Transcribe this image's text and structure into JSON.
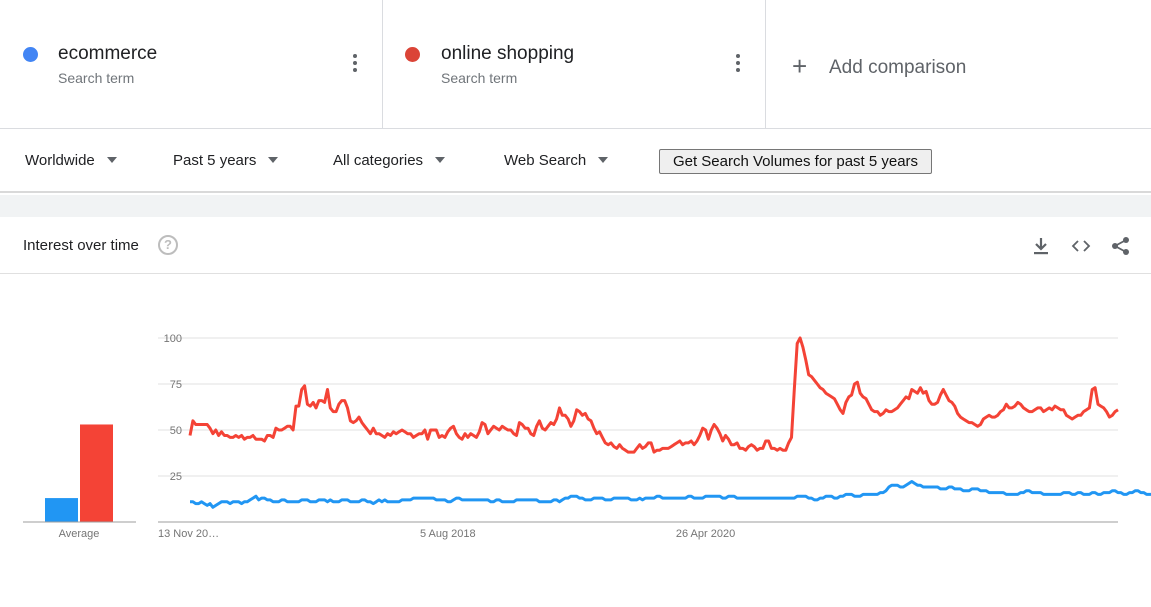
{
  "terms": [
    {
      "name": "ecommerce",
      "type": "Search term",
      "color": "#4285f4"
    },
    {
      "name": "online shopping",
      "type": "Search term",
      "color": "#db4437"
    }
  ],
  "add_comparison": {
    "icon": "plus-icon",
    "label": "Add comparison"
  },
  "filters": {
    "region": "Worldwide",
    "time": "Past 5 years",
    "category": "All categories",
    "search_type": "Web Search",
    "volume_button": "Get Search Volumes for past 5 years"
  },
  "card": {
    "title": "Interest over time",
    "help_icon": "question-circle-icon",
    "tools": [
      "download-icon",
      "embed-code-icon",
      "share-icon"
    ]
  },
  "chart_data": {
    "type": "line",
    "title": "Interest over time",
    "ylim": [
      0,
      100
    ],
    "y_ticks": [
      25,
      50,
      75,
      100
    ],
    "x_ticks": [
      {
        "label": "13 Nov 20…",
        "index": 0
      },
      {
        "label": "5 Aug 2018",
        "index": 90
      },
      {
        "label": "26 Apr 2020",
        "index": 180
      }
    ],
    "grid": true,
    "average_label": "Average",
    "averages": [
      {
        "name": "ecommerce",
        "value": 13,
        "color": "#2196f3"
      },
      {
        "name": "online shopping",
        "value": 53,
        "color": "#f44336"
      }
    ],
    "series": [
      {
        "name": "online shopping",
        "color": "#f44336",
        "values": [
          47,
          55,
          53,
          53,
          53,
          53,
          53,
          51,
          48,
          50,
          47,
          49,
          47,
          47,
          46,
          46,
          47,
          46,
          47,
          45,
          46,
          46,
          47,
          45,
          45,
          45,
          44,
          47,
          47,
          46,
          51,
          50,
          50,
          51,
          52,
          52,
          50,
          63,
          63,
          72,
          74,
          64,
          63,
          65,
          62,
          66,
          66,
          65,
          72,
          62,
          60,
          60,
          64,
          66,
          66,
          62,
          55,
          54,
          55,
          57,
          54,
          52,
          50,
          48,
          51,
          48,
          48,
          47,
          46,
          48,
          47,
          49,
          48,
          49,
          50,
          49,
          48,
          48,
          46,
          47,
          48,
          48,
          50,
          45,
          50,
          50,
          50,
          46,
          47,
          46,
          49,
          51,
          52,
          48,
          46,
          45,
          48,
          46,
          48,
          47,
          46,
          49,
          54,
          53,
          48,
          50,
          52,
          51,
          50,
          52,
          51,
          50,
          50,
          48,
          47,
          54,
          53,
          51,
          51,
          48,
          47,
          52,
          55,
          51,
          50,
          52,
          54,
          53,
          56,
          62,
          58,
          58,
          56,
          52,
          55,
          61,
          60,
          58,
          59,
          56,
          55,
          51,
          48,
          49,
          46,
          43,
          42,
          43,
          41,
          40,
          42,
          40,
          39,
          38,
          38,
          38,
          40,
          42,
          40,
          41,
          43,
          43,
          38,
          39,
          39,
          40,
          40,
          40,
          41,
          42,
          43,
          44,
          42,
          43,
          43,
          44,
          42,
          44,
          47,
          51,
          50,
          45,
          50,
          53,
          51,
          48,
          44,
          47,
          45,
          42,
          42,
          43,
          40,
          40,
          39,
          41,
          42,
          41,
          39,
          40,
          40,
          44,
          44,
          40,
          40,
          39,
          40,
          39,
          39,
          43,
          46,
          72,
          97,
          100,
          95,
          88,
          80,
          79,
          77,
          75,
          73,
          72,
          70,
          69,
          68,
          67,
          64,
          61,
          59,
          65,
          68,
          69,
          75,
          76,
          70,
          68,
          67,
          64,
          61,
          60,
          60,
          58,
          59,
          61,
          60,
          60,
          61,
          62,
          64,
          66,
          68,
          67,
          72,
          71,
          70,
          73,
          70,
          71,
          66,
          64,
          64,
          65,
          69,
          72,
          69,
          66,
          65,
          63,
          59,
          57,
          56,
          55,
          54,
          54,
          53,
          52,
          53,
          56,
          57,
          58,
          57,
          57,
          58,
          60,
          61,
          64,
          62,
          62,
          63,
          65,
          64,
          62,
          61,
          60,
          60,
          61,
          62,
          62,
          60,
          61,
          62,
          61,
          63,
          62,
          61,
          61,
          58,
          57,
          56,
          57,
          58,
          58,
          60,
          61,
          62,
          72,
          73,
          64,
          63,
          62,
          60,
          57,
          58,
          60,
          61
        ]
      },
      {
        "name": "ecommerce",
        "color": "#2196f3",
        "values": [
          11,
          11,
          10,
          10,
          11,
          10,
          9,
          10,
          8,
          9,
          10,
          11,
          11,
          11,
          10,
          11,
          11,
          11,
          10,
          11,
          11,
          12,
          13,
          14,
          12,
          13,
          13,
          12,
          12,
          11,
          11,
          11,
          12,
          12,
          11,
          11,
          11,
          11,
          11,
          12,
          12,
          12,
          11,
          11,
          11,
          12,
          12,
          12,
          11,
          12,
          11,
          11,
          11,
          12,
          12,
          12,
          11,
          11,
          11,
          11,
          12,
          12,
          11,
          11,
          10,
          11,
          12,
          11,
          12,
          11,
          11,
          11,
          11,
          11,
          12,
          12,
          12,
          12,
          13,
          13,
          13,
          13,
          13,
          13,
          13,
          13,
          12,
          12,
          12,
          12,
          11,
          11,
          12,
          13,
          13,
          12,
          12,
          12,
          12,
          12,
          12,
          12,
          12,
          12,
          12,
          11,
          11,
          12,
          12,
          11,
          11,
          11,
          11,
          11,
          12,
          12,
          12,
          12,
          12,
          12,
          12,
          12,
          11,
          11,
          11,
          11,
          11,
          12,
          12,
          11,
          12,
          13,
          13,
          14,
          14,
          14,
          13,
          13,
          12,
          12,
          12,
          13,
          13,
          13,
          13,
          12,
          12,
          12,
          13,
          13,
          13,
          13,
          13,
          13,
          12,
          12,
          12,
          13,
          12,
          13,
          13,
          13,
          13,
          14,
          14,
          13,
          13,
          13,
          13,
          13,
          13,
          13,
          13,
          13,
          14,
          14,
          13,
          13,
          13,
          13,
          14,
          14,
          14,
          14,
          14,
          14,
          13,
          13,
          14,
          14,
          14,
          13,
          13,
          13,
          13,
          13,
          13,
          13,
          13,
          13,
          13,
          13,
          13,
          13,
          13,
          13,
          13,
          13,
          13,
          13,
          13,
          13,
          14,
          14,
          14,
          14,
          13,
          13,
          12,
          12,
          13,
          13,
          14,
          14,
          14,
          13,
          13,
          14,
          14,
          15,
          15,
          15,
          14,
          14,
          14,
          15,
          15,
          15,
          15,
          15,
          15,
          16,
          16,
          17,
          19,
          20,
          20,
          20,
          19,
          19,
          20,
          21,
          22,
          21,
          20,
          20,
          19,
          19,
          19,
          19,
          19,
          19,
          18,
          18,
          18,
          19,
          19,
          18,
          18,
          18,
          17,
          17,
          17,
          18,
          18,
          18,
          17,
          17,
          17,
          16,
          16,
          16,
          16,
          16,
          16,
          15,
          15,
          15,
          15,
          15,
          16,
          16,
          17,
          17,
          16,
          16,
          16,
          16,
          15,
          15,
          15,
          15,
          15,
          15,
          15,
          16,
          16,
          16,
          15,
          15,
          16,
          16,
          15,
          15,
          15,
          16,
          16,
          15,
          15,
          16,
          16,
          16,
          17,
          17,
          16,
          16,
          15,
          15,
          16,
          16,
          17,
          17,
          16,
          16,
          15,
          15,
          15,
          16,
          16,
          16,
          15,
          15,
          15,
          14,
          14,
          13,
          12
        ]
      }
    ]
  }
}
